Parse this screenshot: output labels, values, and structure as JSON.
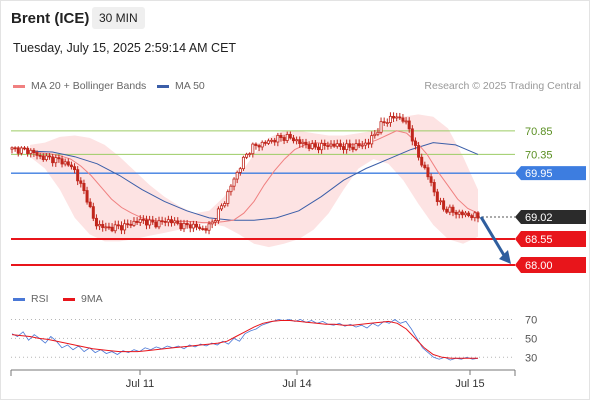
{
  "header": {
    "instrument": "Brent (ICE)",
    "timeframe": "30 MIN",
    "timestamp": "Tuesday, July 15, 2025 2:59:14 AM CET"
  },
  "legend": {
    "ma_bb_label": "MA 20 + Bollinger Bands",
    "ma50_label": "MA 50",
    "credit": "Research © 2025 Trading Central"
  },
  "rsi_legend": {
    "rsi_label": "RSI",
    "ma_label": "9MA"
  },
  "colors": {
    "ma20": "#f08080",
    "ma50": "#3b5ea8",
    "band_fill": "#fde3e3",
    "candle": "#c0261c",
    "support": "#e8151b",
    "resistance": "#9ccc65",
    "pivot": "#3d7de0",
    "arrow": "#2f5e9e"
  },
  "chart_data": [
    {
      "type": "candlestick",
      "title": "",
      "x_tick_labels": [
        "Jul 11",
        "Jul 14",
        "Jul 15"
      ],
      "y_range": [
        67.85,
        71.25
      ],
      "price_path": [
        70.46,
        70.45,
        70.44,
        70.4,
        70.3,
        70.28,
        70.25,
        70.22,
        70.15,
        70.05,
        69.7,
        69.4,
        68.9,
        68.82,
        68.78,
        68.8,
        68.82,
        68.85,
        68.92,
        68.95,
        68.9,
        68.88,
        68.92,
        68.95,
        68.88,
        68.82,
        68.85,
        68.8,
        68.75,
        68.85,
        69.1,
        69.35,
        69.7,
        70.0,
        70.3,
        70.5,
        70.55,
        70.6,
        70.65,
        70.7,
        70.72,
        70.68,
        70.6,
        70.55,
        70.5,
        70.52,
        70.55,
        70.55,
        70.52,
        70.5,
        70.52,
        70.55,
        70.6,
        70.8,
        71.0,
        71.1,
        71.15,
        71.1,
        70.9,
        70.4,
        70.1,
        69.8,
        69.4,
        69.2,
        69.15,
        69.1,
        69.08,
        69.05,
        69.02
      ],
      "ma20_path": [
        70.4,
        70.38,
        70.36,
        70.32,
        70.25,
        70.1,
        69.9,
        69.65,
        69.4,
        69.22,
        69.1,
        69.0,
        68.95,
        68.92,
        68.92,
        68.93,
        68.92,
        68.9,
        68.9,
        68.92,
        68.95,
        69.1,
        69.35,
        69.7,
        70.0,
        70.25,
        70.45,
        70.55,
        70.6,
        70.58,
        70.55,
        70.55,
        70.56,
        70.58,
        70.65,
        70.75,
        70.85,
        70.8,
        70.6,
        70.35,
        70.0,
        69.7,
        69.4,
        69.2,
        69.1
      ],
      "ma50_path": [
        70.42,
        70.4,
        70.3,
        70.15,
        69.9,
        69.6,
        69.35,
        69.15,
        69.0,
        68.95,
        68.95,
        69.0,
        69.15,
        69.45,
        69.8,
        70.05,
        70.25,
        70.45,
        70.6,
        70.55,
        70.35
      ],
      "band_upper_path": [
        70.55,
        70.6,
        70.72,
        70.75,
        70.7,
        70.55,
        70.3,
        70.0,
        69.7,
        69.45,
        69.25,
        69.1,
        69.15,
        69.45,
        69.9,
        70.35,
        70.7,
        70.85,
        70.85,
        70.8,
        70.75,
        70.75,
        70.8,
        70.85,
        71.0,
        71.15,
        71.2,
        71.15,
        70.9,
        70.3,
        69.6
      ],
      "band_lower_path": [
        70.3,
        70.05,
        69.6,
        69.0,
        68.65,
        68.5,
        68.5,
        68.55,
        68.62,
        68.68,
        68.75,
        68.85,
        68.88,
        68.82,
        68.65,
        68.45,
        68.38,
        68.45,
        68.55,
        68.75,
        69.1,
        69.6,
        70.05,
        70.25,
        70.15,
        69.8,
        69.3,
        68.85,
        68.55,
        68.45,
        68.6
      ],
      "levels": [
        {
          "label": "70.85",
          "value": 70.85,
          "kind": "resistance"
        },
        {
          "label": "70.35",
          "value": 70.35,
          "kind": "resistance"
        },
        {
          "label": "69.95",
          "value": 69.95,
          "kind": "pivot"
        },
        {
          "label": "69.02",
          "value": 69.02,
          "kind": "last"
        },
        {
          "label": "68.55",
          "value": 68.55,
          "kind": "support"
        },
        {
          "label": "68.00",
          "value": 68.0,
          "kind": "support"
        }
      ],
      "forecast_arrow": {
        "from": 69.02,
        "to": 68.0
      }
    },
    {
      "type": "line",
      "title": "",
      "y_range": [
        25,
        78
      ],
      "y_tick_labels": [
        "70",
        "50",
        "30"
      ],
      "y_ticks": [
        70,
        50,
        30
      ],
      "rsi_path": [
        55,
        52,
        57,
        48,
        54,
        50,
        45,
        52,
        47,
        40,
        43,
        38,
        42,
        36,
        40,
        35,
        38,
        34,
        36,
        33,
        37,
        35,
        38,
        36,
        40,
        38,
        41,
        39,
        42,
        40,
        42,
        39,
        43,
        41,
        44,
        42,
        45,
        43,
        47,
        44,
        50,
        47,
        55,
        58,
        60,
        64,
        66,
        68,
        70,
        69,
        70,
        68,
        70,
        67,
        69,
        66,
        68,
        65,
        64,
        66,
        63,
        65,
        62,
        64,
        61,
        66,
        63,
        68,
        66,
        70,
        66,
        68,
        60,
        50,
        40,
        35,
        30,
        28,
        30,
        27,
        29,
        28,
        30,
        28,
        29
      ],
      "ma_path": [
        54,
        53,
        52,
        50,
        49,
        47,
        45,
        43,
        41,
        39,
        38,
        37,
        36,
        36,
        36,
        37,
        38,
        39,
        40,
        41,
        42,
        43,
        44,
        45,
        47,
        52,
        57,
        62,
        66,
        68,
        69,
        69,
        68,
        67,
        66,
        65,
        65,
        64,
        64,
        65,
        66,
        67,
        68,
        66,
        60,
        50,
        40,
        33,
        30,
        29,
        29,
        29,
        29
      ]
    }
  ]
}
